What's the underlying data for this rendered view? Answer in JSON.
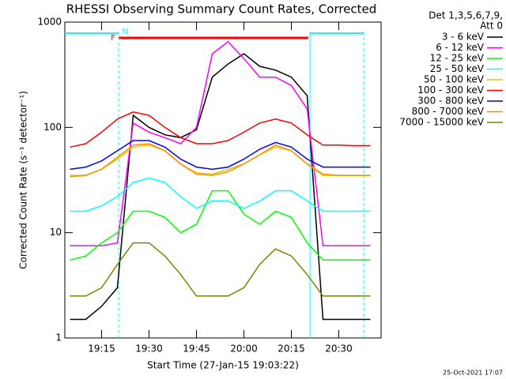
{
  "chart_data": {
    "type": "line",
    "title": "RHESSI Observing Summary Count Rates, Corrected",
    "x_label": "Start Time (27-Jan-15 19:03:22)",
    "y_label": "Corrected Count Rate (s⁻¹ detector⁻¹)",
    "legend_header": [
      "Det 1,3,5,6,7,9,",
      "Att 0"
    ],
    "timestamp": "25-Oct-2021 17:07",
    "flags": [
      "F",
      "N"
    ],
    "log_y": true,
    "xlim": [
      1143.37,
      1243.37
    ],
    "xticks": [
      {
        "value": 1155,
        "label": "19:15"
      },
      {
        "value": 1170,
        "label": "19:30"
      },
      {
        "value": 1185,
        "label": "19:45"
      },
      {
        "value": 1200,
        "label": "20:00"
      },
      {
        "value": 1215,
        "label": "20:15"
      },
      {
        "value": 1230,
        "label": "20:30"
      }
    ],
    "ylim": [
      1,
      1000
    ],
    "yticks": [
      1,
      10,
      100,
      1000
    ],
    "x": [
      1145,
      1150,
      1155,
      1160,
      1165,
      1170,
      1175,
      1180,
      1185,
      1190,
      1195,
      1200,
      1205,
      1210,
      1215,
      1220,
      1225,
      1230,
      1235,
      1240
    ],
    "series": [
      {
        "name": "3 - 6 keV",
        "color": "#000000",
        "values": [
          1.5,
          1.5,
          2,
          3,
          130,
          100,
          85,
          80,
          95,
          300,
          400,
          500,
          380,
          350,
          300,
          200,
          1.5,
          1.5,
          1.5,
          1.5
        ]
      },
      {
        "name": "6 - 12 keV",
        "color": "#ff00ff",
        "values": [
          7.5,
          7.5,
          7.5,
          8,
          110,
          90,
          80,
          70,
          100,
          500,
          650,
          450,
          300,
          300,
          250,
          150,
          7.5,
          7.5,
          7.5,
          7.5
        ]
      },
      {
        "name": "12 - 25 keV",
        "color": "#00ff00",
        "values": [
          5.5,
          6,
          8,
          10,
          16,
          16,
          14,
          10,
          12,
          25,
          25,
          15,
          12,
          16,
          14,
          8,
          5.5,
          5.5,
          5.5,
          5.5
        ]
      },
      {
        "name": "25 - 50 keV",
        "color": "#00ffff",
        "values": [
          16,
          16,
          18,
          22,
          30,
          33,
          30,
          22,
          17,
          20,
          20,
          17,
          20,
          25,
          25,
          20,
          16,
          16,
          16,
          16
        ]
      },
      {
        "name": "50 - 100 keV",
        "color": "#e6c800",
        "values": [
          35,
          35,
          40,
          50,
          65,
          68,
          60,
          45,
          37,
          36,
          40,
          45,
          55,
          65,
          60,
          45,
          35,
          35,
          35,
          35
        ]
      },
      {
        "name": "100 - 300 keV",
        "color": "#ff0000",
        "values": [
          65,
          70,
          90,
          120,
          140,
          130,
          100,
          80,
          70,
          70,
          75,
          90,
          110,
          120,
          110,
          85,
          68,
          68,
          67,
          67
        ]
      },
      {
        "name": "300 - 800 keV",
        "color": "#0000ff",
        "values": [
          40,
          42,
          48,
          60,
          75,
          75,
          65,
          50,
          42,
          40,
          42,
          50,
          62,
          72,
          65,
          50,
          42,
          42,
          42,
          42
        ]
      },
      {
        "name": "800 - 7000 keV",
        "color": "#ff8c00",
        "values": [
          34,
          35,
          40,
          52,
          68,
          70,
          60,
          45,
          36,
          35,
          38,
          45,
          55,
          68,
          60,
          45,
          36,
          35,
          35,
          35
        ]
      },
      {
        "name": "7000 - 15000 keV",
        "color": "#808000",
        "values": [
          2.5,
          2.5,
          3,
          5,
          8,
          8,
          6,
          4,
          2.5,
          2.5,
          2.5,
          3,
          5,
          7,
          6,
          4,
          2.5,
          2.5,
          2.5,
          2.5
        ]
      }
    ]
  }
}
